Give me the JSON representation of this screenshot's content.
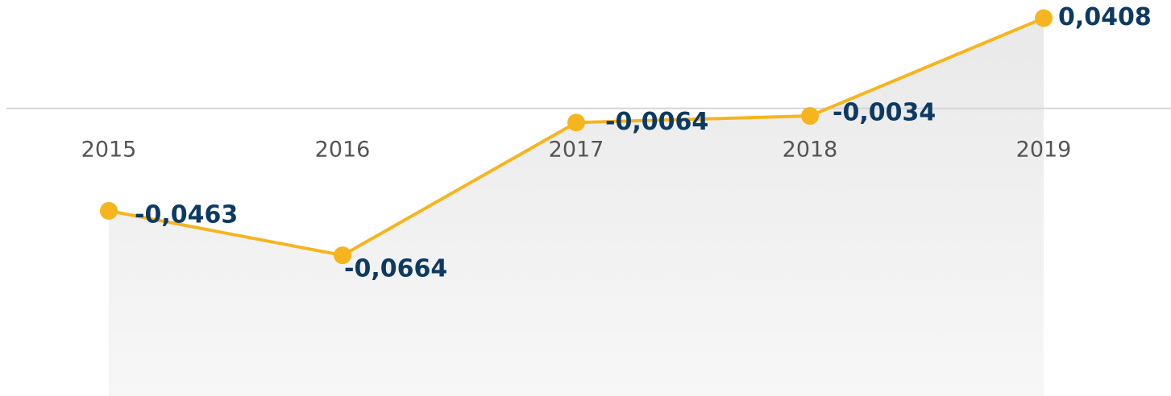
{
  "chart_data": {
    "type": "line",
    "categories": [
      "2015",
      "2016",
      "2017",
      "2018",
      "2019"
    ],
    "values": [
      -0.0463,
      -0.0664,
      -0.0064,
      -0.0034,
      0.0408
    ],
    "value_labels": [
      "-0,0463",
      "-0,0664",
      "-0,0064",
      "-0,0034",
      "0,0408"
    ],
    "color": "#f6b51e",
    "ylim": [
      -0.13,
      0.049
    ]
  }
}
